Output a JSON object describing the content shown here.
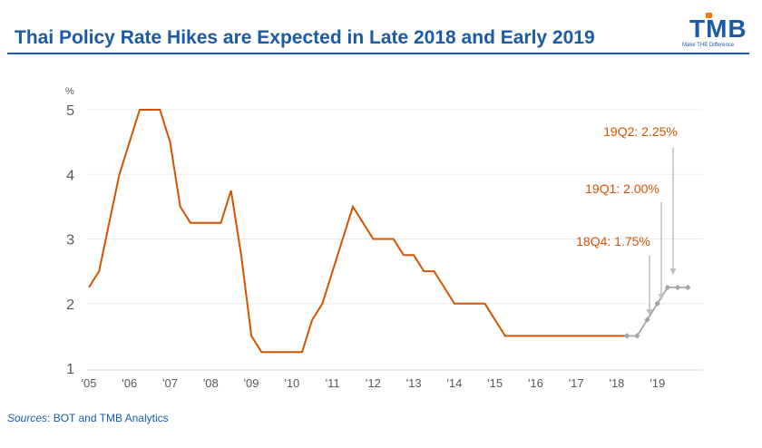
{
  "header": {
    "title": "Thai Policy Rate Hikes are Expected in Late 2018 and Early 2019",
    "logo_text": "TMB",
    "logo_tagline": "Make THE Difference",
    "accent_color": "#1a5aa6",
    "logo_accent_color": "#f07c00"
  },
  "footer": {
    "source_label": "Sources",
    "source_text": ": BOT and TMB Analytics"
  },
  "chart_data": {
    "type": "line",
    "title": "Thai Policy Rate Hikes are Expected in Late 2018 and Early 2019",
    "ylabel": "%",
    "xlabel": "",
    "ylim": [
      1,
      5
    ],
    "xlim": [
      2005,
      2019.9
    ],
    "grid": true,
    "yticks": [
      1,
      2,
      3,
      4,
      5
    ],
    "xtick_labels": [
      "'05",
      "'06",
      "'07",
      "'08",
      "'09",
      "'10",
      "'11",
      "'12",
      "'13",
      "'14",
      "'15",
      "'16",
      "'17",
      "'18",
      "'19"
    ],
    "xtick_values": [
      2005,
      2006,
      2007,
      2008,
      2009,
      2010,
      2011,
      2012,
      2013,
      2014,
      2015,
      2016,
      2017,
      2018,
      2019
    ],
    "series": [
      {
        "color": "#d35400",
        "points": [
          [
            2005.0,
            2.25
          ],
          [
            2005.25,
            2.5
          ],
          [
            2005.5,
            3.25
          ],
          [
            2005.75,
            4.0
          ],
          [
            2006.0,
            4.5
          ],
          [
            2006.25,
            5.0
          ],
          [
            2006.5,
            5.0
          ],
          [
            2006.75,
            5.0
          ],
          [
            2007.0,
            4.5
          ],
          [
            2007.25,
            3.5
          ],
          [
            2007.5,
            3.25
          ],
          [
            2007.75,
            3.25
          ],
          [
            2008.0,
            3.25
          ],
          [
            2008.25,
            3.25
          ],
          [
            2008.5,
            3.75
          ],
          [
            2008.75,
            2.75
          ],
          [
            2009.0,
            1.5
          ],
          [
            2009.25,
            1.25
          ],
          [
            2009.5,
            1.25
          ],
          [
            2009.75,
            1.25
          ],
          [
            2010.0,
            1.25
          ],
          [
            2010.25,
            1.25
          ],
          [
            2010.5,
            1.75
          ],
          [
            2010.75,
            2.0
          ],
          [
            2011.0,
            2.5
          ],
          [
            2011.25,
            3.0
          ],
          [
            2011.5,
            3.5
          ],
          [
            2011.75,
            3.25
          ],
          [
            2012.0,
            3.0
          ],
          [
            2012.25,
            3.0
          ],
          [
            2012.5,
            3.0
          ],
          [
            2012.75,
            2.75
          ],
          [
            2013.0,
            2.75
          ],
          [
            2013.25,
            2.5
          ],
          [
            2013.5,
            2.5
          ],
          [
            2013.75,
            2.25
          ],
          [
            2014.0,
            2.0
          ],
          [
            2014.25,
            2.0
          ],
          [
            2014.5,
            2.0
          ],
          [
            2014.75,
            2.0
          ],
          [
            2015.0,
            1.75
          ],
          [
            2015.25,
            1.5
          ],
          [
            2015.5,
            1.5
          ],
          [
            2015.75,
            1.5
          ],
          [
            2016.0,
            1.5
          ],
          [
            2016.5,
            1.5
          ],
          [
            2017.0,
            1.5
          ],
          [
            2017.5,
            1.5
          ],
          [
            2018.0,
            1.5
          ],
          [
            2018.25,
            1.5
          ]
        ]
      },
      {
        "color": "#a6a6a6",
        "marker": "diamond",
        "points": [
          [
            2018.25,
            1.5
          ],
          [
            2018.5,
            1.5
          ],
          [
            2018.75,
            1.75
          ],
          [
            2019.0,
            2.0
          ],
          [
            2019.25,
            2.25
          ],
          [
            2019.5,
            2.25
          ],
          [
            2019.75,
            2.25
          ]
        ]
      }
    ],
    "annotations": [
      {
        "text": "19Q2: 2.25%",
        "x": 2019.25,
        "y": 2.25,
        "color": "#d35400"
      },
      {
        "text": "19Q1: 2.00%",
        "x": 2019.0,
        "y": 2.0,
        "color": "#d35400"
      },
      {
        "text": "18Q4: 1.75%",
        "x": 2018.75,
        "y": 1.75,
        "color": "#d35400"
      }
    ],
    "grid_color": "#ececec",
    "tick_color": "#595959"
  }
}
